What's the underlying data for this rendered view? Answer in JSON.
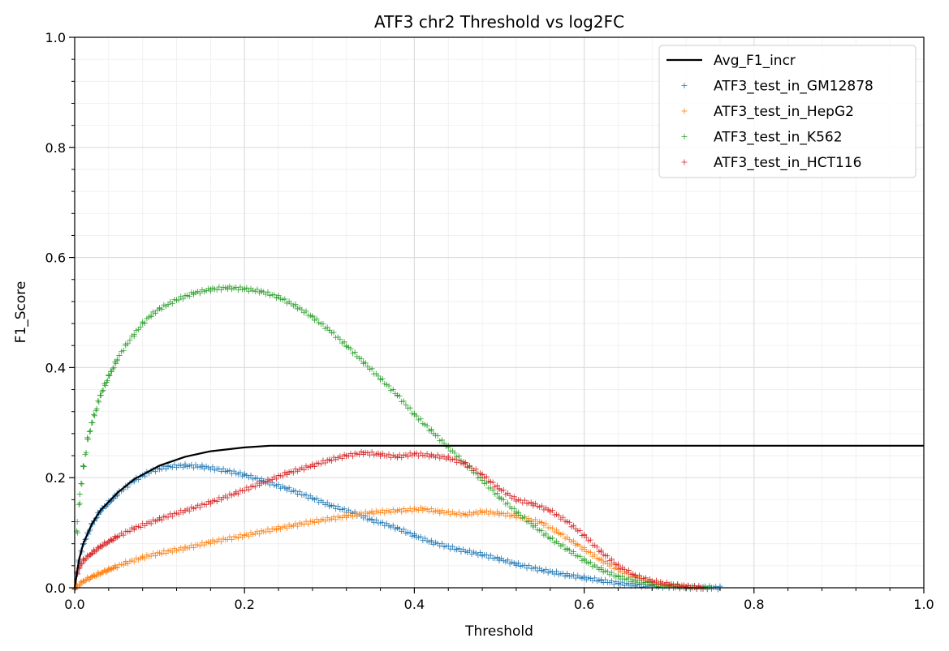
{
  "chart_data": {
    "type": "scatter",
    "title": "ATF3 chr2 Threshold vs log2FC",
    "xlabel": "Threshold",
    "ylabel": "F1_Score",
    "xlim": [
      0,
      1
    ],
    "ylim": [
      0,
      1
    ],
    "xticks": [
      "0.0",
      "0.2",
      "0.4",
      "0.6",
      "0.8",
      "1.0"
    ],
    "yticks": [
      "0.0",
      "0.2",
      "0.4",
      "0.6",
      "0.8",
      "1.0"
    ],
    "grid": true,
    "legend_position": "top-right",
    "line": {
      "name": "Avg_F1_incr",
      "color": "#000000",
      "points": [
        [
          0,
          0
        ],
        [
          0.005,
          0.05
        ],
        [
          0.01,
          0.08
        ],
        [
          0.02,
          0.115
        ],
        [
          0.03,
          0.14
        ],
        [
          0.05,
          0.172
        ],
        [
          0.07,
          0.197
        ],
        [
          0.1,
          0.222
        ],
        [
          0.13,
          0.238
        ],
        [
          0.16,
          0.248
        ],
        [
          0.2,
          0.255
        ],
        [
          0.23,
          0.258
        ],
        [
          1.0,
          0.258
        ]
      ]
    },
    "series": [
      {
        "name": "ATF3_test_in_GM12878",
        "color": "#1f77b4",
        "points": [
          [
            0,
            0
          ],
          [
            0.005,
            0.05
          ],
          [
            0.01,
            0.08
          ],
          [
            0.02,
            0.115
          ],
          [
            0.03,
            0.14
          ],
          [
            0.05,
            0.17
          ],
          [
            0.07,
            0.195
          ],
          [
            0.09,
            0.212
          ],
          [
            0.11,
            0.22
          ],
          [
            0.13,
            0.222
          ],
          [
            0.15,
            0.22
          ],
          [
            0.18,
            0.212
          ],
          [
            0.2,
            0.205
          ],
          [
            0.22,
            0.195
          ],
          [
            0.25,
            0.18
          ],
          [
            0.28,
            0.163
          ],
          [
            0.3,
            0.15
          ],
          [
            0.33,
            0.135
          ],
          [
            0.35,
            0.123
          ],
          [
            0.38,
            0.108
          ],
          [
            0.4,
            0.095
          ],
          [
            0.42,
            0.083
          ],
          [
            0.45,
            0.07
          ],
          [
            0.48,
            0.06
          ],
          [
            0.5,
            0.052
          ],
          [
            0.52,
            0.043
          ],
          [
            0.55,
            0.032
          ],
          [
            0.58,
            0.023
          ],
          [
            0.6,
            0.018
          ],
          [
            0.62,
            0.013
          ],
          [
            0.64,
            0.008
          ],
          [
            0.66,
            0.005
          ],
          [
            0.68,
            0.003
          ],
          [
            0.7,
            0.002
          ],
          [
            0.72,
            0.001
          ],
          [
            0.76,
            0.0
          ]
        ]
      },
      {
        "name": "ATF3_test_in_HepG2",
        "color": "#ff7f0e",
        "points": [
          [
            0,
            0
          ],
          [
            0.01,
            0.012
          ],
          [
            0.02,
            0.02
          ],
          [
            0.04,
            0.033
          ],
          [
            0.06,
            0.045
          ],
          [
            0.08,
            0.055
          ],
          [
            0.1,
            0.063
          ],
          [
            0.13,
            0.072
          ],
          [
            0.16,
            0.083
          ],
          [
            0.2,
            0.095
          ],
          [
            0.24,
            0.108
          ],
          [
            0.28,
            0.12
          ],
          [
            0.32,
            0.13
          ],
          [
            0.35,
            0.137
          ],
          [
            0.38,
            0.14
          ],
          [
            0.41,
            0.143
          ],
          [
            0.43,
            0.138
          ],
          [
            0.46,
            0.133
          ],
          [
            0.48,
            0.138
          ],
          [
            0.5,
            0.135
          ],
          [
            0.52,
            0.13
          ],
          [
            0.55,
            0.118
          ],
          [
            0.57,
            0.1
          ],
          [
            0.59,
            0.08
          ],
          [
            0.6,
            0.07
          ],
          [
            0.62,
            0.05
          ],
          [
            0.64,
            0.033
          ],
          [
            0.66,
            0.02
          ],
          [
            0.68,
            0.01
          ],
          [
            0.7,
            0.005
          ],
          [
            0.72,
            0.002
          ]
        ]
      },
      {
        "name": "ATF3_test_in_K562",
        "color": "#2ca02c",
        "points": [
          [
            0,
            0
          ],
          [
            0.003,
            0.12
          ],
          [
            0.006,
            0.17
          ],
          [
            0.01,
            0.22
          ],
          [
            0.015,
            0.27
          ],
          [
            0.02,
            0.3
          ],
          [
            0.03,
            0.35
          ],
          [
            0.04,
            0.385
          ],
          [
            0.05,
            0.415
          ],
          [
            0.06,
            0.44
          ],
          [
            0.07,
            0.46
          ],
          [
            0.08,
            0.48
          ],
          [
            0.09,
            0.495
          ],
          [
            0.1,
            0.507
          ],
          [
            0.12,
            0.523
          ],
          [
            0.14,
            0.535
          ],
          [
            0.16,
            0.542
          ],
          [
            0.18,
            0.545
          ],
          [
            0.2,
            0.543
          ],
          [
            0.22,
            0.538
          ],
          [
            0.24,
            0.528
          ],
          [
            0.26,
            0.512
          ],
          [
            0.28,
            0.492
          ],
          [
            0.3,
            0.468
          ],
          [
            0.32,
            0.44
          ],
          [
            0.34,
            0.41
          ],
          [
            0.36,
            0.38
          ],
          [
            0.38,
            0.35
          ],
          [
            0.4,
            0.315
          ],
          [
            0.42,
            0.285
          ],
          [
            0.44,
            0.255
          ],
          [
            0.46,
            0.225
          ],
          [
            0.48,
            0.195
          ],
          [
            0.5,
            0.165
          ],
          [
            0.52,
            0.138
          ],
          [
            0.54,
            0.113
          ],
          [
            0.56,
            0.09
          ],
          [
            0.58,
            0.07
          ],
          [
            0.6,
            0.05
          ],
          [
            0.62,
            0.033
          ],
          [
            0.64,
            0.02
          ],
          [
            0.66,
            0.012
          ],
          [
            0.68,
            0.006
          ],
          [
            0.7,
            0.003
          ],
          [
            0.72,
            0.001
          ],
          [
            0.75,
            0.0
          ]
        ]
      },
      {
        "name": "ATF3_test_in_HCT116",
        "color": "#d62728",
        "points": [
          [
            0,
            0
          ],
          [
            0.003,
            0.03
          ],
          [
            0.006,
            0.04
          ],
          [
            0.01,
            0.05
          ],
          [
            0.02,
            0.063
          ],
          [
            0.03,
            0.075
          ],
          [
            0.05,
            0.093
          ],
          [
            0.07,
            0.108
          ],
          [
            0.1,
            0.125
          ],
          [
            0.13,
            0.14
          ],
          [
            0.16,
            0.155
          ],
          [
            0.19,
            0.172
          ],
          [
            0.22,
            0.19
          ],
          [
            0.25,
            0.208
          ],
          [
            0.28,
            0.222
          ],
          [
            0.3,
            0.232
          ],
          [
            0.32,
            0.24
          ],
          [
            0.34,
            0.245
          ],
          [
            0.36,
            0.242
          ],
          [
            0.38,
            0.238
          ],
          [
            0.4,
            0.243
          ],
          [
            0.42,
            0.24
          ],
          [
            0.44,
            0.236
          ],
          [
            0.46,
            0.225
          ],
          [
            0.48,
            0.205
          ],
          [
            0.5,
            0.18
          ],
          [
            0.52,
            0.16
          ],
          [
            0.54,
            0.152
          ],
          [
            0.56,
            0.14
          ],
          [
            0.58,
            0.12
          ],
          [
            0.6,
            0.095
          ],
          [
            0.62,
            0.065
          ],
          [
            0.64,
            0.04
          ],
          [
            0.66,
            0.022
          ],
          [
            0.68,
            0.012
          ],
          [
            0.7,
            0.006
          ],
          [
            0.72,
            0.002
          ],
          [
            0.74,
            0.0
          ]
        ]
      }
    ]
  }
}
